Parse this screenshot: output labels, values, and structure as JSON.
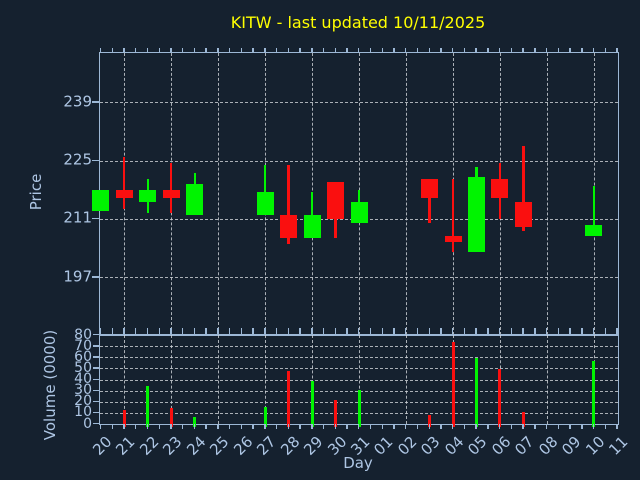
{
  "title": {
    "text": "KITW - last updated 10/11/2025"
  },
  "axes": {
    "price": {
      "label": "Price",
      "ticks": [
        239,
        225,
        211,
        197
      ]
    },
    "volume": {
      "label": "Volume (0000)",
      "ticks": [
        80,
        70,
        60,
        50,
        40,
        30,
        20,
        10,
        0
      ]
    },
    "x": {
      "label": "Day"
    }
  },
  "chart_data": {
    "type": "candlestick_with_volume",
    "title": "KITW - last updated 10/11/2025",
    "symbol": "KITW",
    "last_updated": "10/11/2025",
    "x_categories": [
      "20",
      "21",
      "22",
      "23",
      "24",
      "25",
      "26",
      "27",
      "28",
      "29",
      "30",
      "31",
      "01",
      "02",
      "03",
      "04",
      "05",
      "06",
      "07",
      "08",
      "09",
      "10",
      "11"
    ],
    "grid_days": [
      "21",
      "23",
      "25",
      "27",
      "29",
      "31",
      "02",
      "04",
      "06",
      "08",
      "10"
    ],
    "price_ylim": [
      183.1,
      250.9
    ],
    "volume_ylim": [
      0,
      80
    ],
    "price_gridlines": [
      239,
      225,
      211,
      197
    ],
    "volume_gridlines": [
      70,
      60,
      50,
      40,
      30,
      20,
      10
    ],
    "candles": [
      {
        "day": "20",
        "open": 213,
        "high": 218,
        "low": 213,
        "close": 218,
        "dir": "up"
      },
      {
        "day": "21",
        "open": 218,
        "high": 226,
        "low": 213.5,
        "close": 216,
        "dir": "down"
      },
      {
        "day": "22",
        "open": 215,
        "high": 220.5,
        "low": 212.5,
        "close": 218,
        "dir": "up"
      },
      {
        "day": "23",
        "open": 218,
        "high": 224.5,
        "low": 212.5,
        "close": 216,
        "dir": "down"
      },
      {
        "day": "24",
        "open": 212,
        "high": 222,
        "low": 212,
        "close": 219.5,
        "dir": "up"
      },
      {
        "day": "27",
        "open": 212,
        "high": 224,
        "low": 212,
        "close": 217.5,
        "dir": "up"
      },
      {
        "day": "28",
        "open": 212,
        "high": 224,
        "low": 205,
        "close": 206.5,
        "dir": "down"
      },
      {
        "day": "29",
        "open": 206.5,
        "high": 217.5,
        "low": 206.5,
        "close": 212,
        "dir": "up"
      },
      {
        "day": "30",
        "open": 220,
        "high": 220,
        "low": 206.5,
        "close": 211,
        "dir": "down"
      },
      {
        "day": "31",
        "open": 210,
        "high": 218,
        "low": 210,
        "close": 215,
        "dir": "up"
      },
      {
        "day": "03",
        "open": 220.5,
        "high": 220.5,
        "low": 210,
        "close": 216,
        "dir": "down"
      },
      {
        "day": "04",
        "open": 207,
        "high": 220.5,
        "low": 203,
        "close": 205.5,
        "dir": "down"
      },
      {
        "day": "05",
        "open": 203,
        "high": 223.5,
        "low": 203,
        "close": 221,
        "dir": "up"
      },
      {
        "day": "06",
        "open": 220.5,
        "high": 224.5,
        "low": 211,
        "close": 216,
        "dir": "down"
      },
      {
        "day": "07",
        "open": 215,
        "high": 228.5,
        "low": 208,
        "close": 209,
        "dir": "down"
      },
      {
        "day": "10",
        "open": 207,
        "high": 219,
        "low": 207,
        "close": 209.5,
        "dir": "up"
      }
    ],
    "volumes": [
      {
        "day": "21",
        "value": 13,
        "dir": "down"
      },
      {
        "day": "22",
        "value": 34,
        "dir": "up"
      },
      {
        "day": "23",
        "value": 14,
        "dir": "down"
      },
      {
        "day": "24",
        "value": 6,
        "dir": "up"
      },
      {
        "day": "27",
        "value": 15,
        "dir": "up"
      },
      {
        "day": "28",
        "value": 48,
        "dir": "down"
      },
      {
        "day": "29",
        "value": 39,
        "dir": "up"
      },
      {
        "day": "30",
        "value": 22,
        "dir": "down"
      },
      {
        "day": "31",
        "value": 31,
        "dir": "up"
      },
      {
        "day": "03",
        "value": 8,
        "dir": "down"
      },
      {
        "day": "04",
        "value": 74,
        "dir": "down"
      },
      {
        "day": "05",
        "value": 59,
        "dir": "up"
      },
      {
        "day": "06",
        "value": 49,
        "dir": "down"
      },
      {
        "day": "07",
        "value": 11,
        "dir": "down"
      },
      {
        "day": "10",
        "value": 57,
        "dir": "up"
      }
    ],
    "legend": "none",
    "grid": "dashed",
    "colors": {
      "up": "#00f400",
      "down": "#fa0f0f",
      "bg": "#15212f",
      "spine": "#9db8d6",
      "text": "#aec6e4",
      "grid": "#d0d4d9",
      "title": "#ffff00"
    }
  }
}
